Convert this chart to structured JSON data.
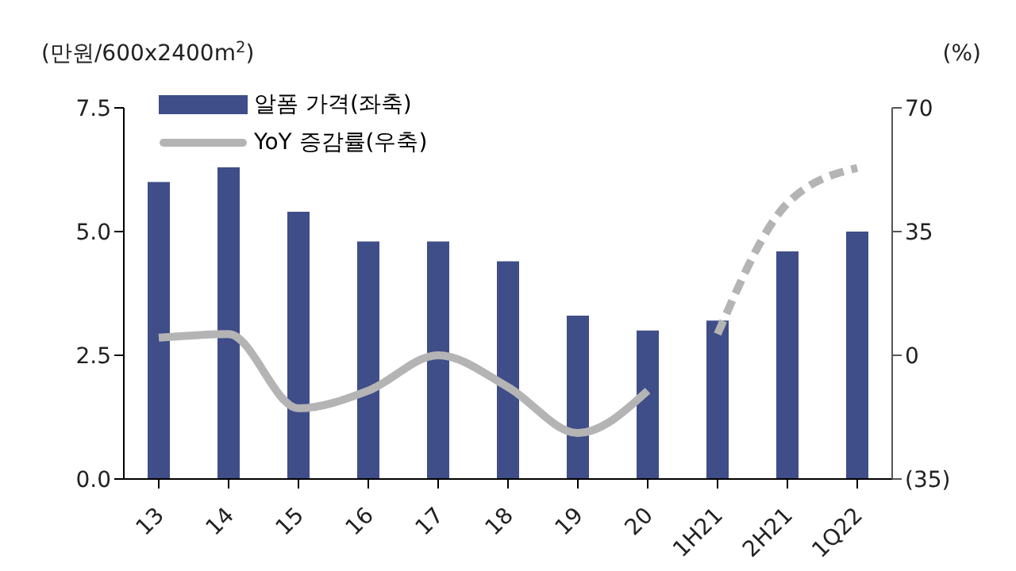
{
  "chart_data": {
    "type": "bar",
    "ylabel": "(만원/600x2400m$^{2}$)",
    "y2label": "(%)",
    "categories": [
      "13",
      "14",
      "15",
      "16",
      "17",
      "18",
      "19",
      "20",
      "1H21",
      "2H21",
      "1Q22"
    ],
    "series": [
      {
        "name": "알폼 가격(좌축)",
        "color": "#3f4d88",
        "values": [
          6.0,
          6.3,
          5.4,
          4.8,
          4.8,
          4.4,
          3.3,
          3.0,
          3.2,
          4.6,
          5.0
        ]
      },
      {
        "name": "YoY 증감률(우축)",
        "type": "line",
        "axis": "y2",
        "color": "#b4b4b4",
        "line_style": "solid",
        "values": [
          5,
          6,
          -15,
          -10,
          0,
          -9,
          -22,
          -10,
          null,
          null,
          null
        ]
      },
      {
        "type": "line",
        "axis": "y2",
        "color": "#b4b4b4",
        "line_style": "dashed",
        "values": [
          null,
          null,
          null,
          null,
          null,
          null,
          null,
          null,
          6,
          43,
          53
        ]
      }
    ],
    "ylim": [
      0,
      7.5
    ],
    "yticks": [
      {
        "value": 0,
        "label": "0.0"
      },
      2.5,
      {
        "value": 5,
        "label": "5.0"
      },
      7.5
    ],
    "y2lim": [
      -35,
      70
    ],
    "y2ticks": [
      {
        "value": -35,
        "label": "(35)"
      },
      0,
      35,
      70
    ],
    "grid": false,
    "legend": "top left",
    "marker": "none"
  }
}
